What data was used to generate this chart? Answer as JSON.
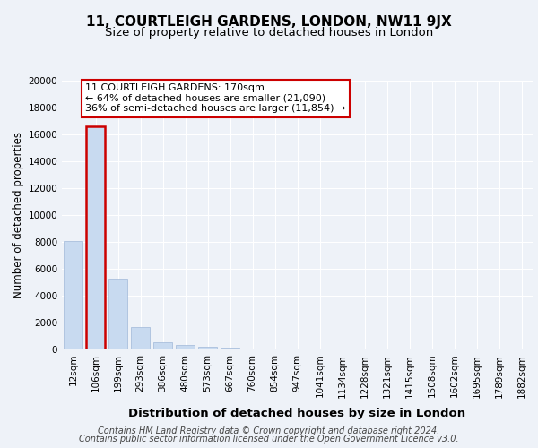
{
  "title": "11, COURTLEIGH GARDENS, LONDON, NW11 9JX",
  "subtitle": "Size of property relative to detached houses in London",
  "xlabel": "Distribution of detached houses by size in London",
  "ylabel": "Number of detached properties",
  "categories": [
    "12sqm",
    "106sqm",
    "199sqm",
    "293sqm",
    "386sqm",
    "480sqm",
    "573sqm",
    "667sqm",
    "760sqm",
    "854sqm",
    "947sqm",
    "1041sqm",
    "1134sqm",
    "1228sqm",
    "1321sqm",
    "1415sqm",
    "1508sqm",
    "1602sqm",
    "1695sqm",
    "1789sqm",
    "1882sqm"
  ],
  "values": [
    8100,
    16600,
    5300,
    1700,
    550,
    350,
    220,
    150,
    100,
    60,
    30,
    15,
    10,
    8,
    5,
    4,
    3,
    2,
    2,
    1,
    1
  ],
  "bar_color": "#c8daf0",
  "bar_edge_color": "#a0b8d8",
  "highlight_bar_index": 1,
  "highlight_edge_color": "#cc0000",
  "annotation_box_text": "11 COURTLEIGH GARDENS: 170sqm\n← 64% of detached houses are smaller (21,090)\n36% of semi-detached houses are larger (11,854) →",
  "annotation_box_color": "#ffffff",
  "annotation_box_edge_color": "#cc0000",
  "footer_line1": "Contains HM Land Registry data © Crown copyright and database right 2024.",
  "footer_line2": "Contains public sector information licensed under the Open Government Licence v3.0.",
  "bg_color": "#eef2f8",
  "plot_bg_color": "#eef2f8",
  "grid_color": "#ffffff",
  "ylim": [
    0,
    20000
  ],
  "yticks": [
    0,
    2000,
    4000,
    6000,
    8000,
    10000,
    12000,
    14000,
    16000,
    18000,
    20000
  ],
  "title_fontsize": 11,
  "subtitle_fontsize": 9.5,
  "ylabel_fontsize": 8.5,
  "xlabel_fontsize": 9.5,
  "tick_fontsize": 7.5,
  "annotation_fontsize": 8,
  "footer_fontsize": 7
}
